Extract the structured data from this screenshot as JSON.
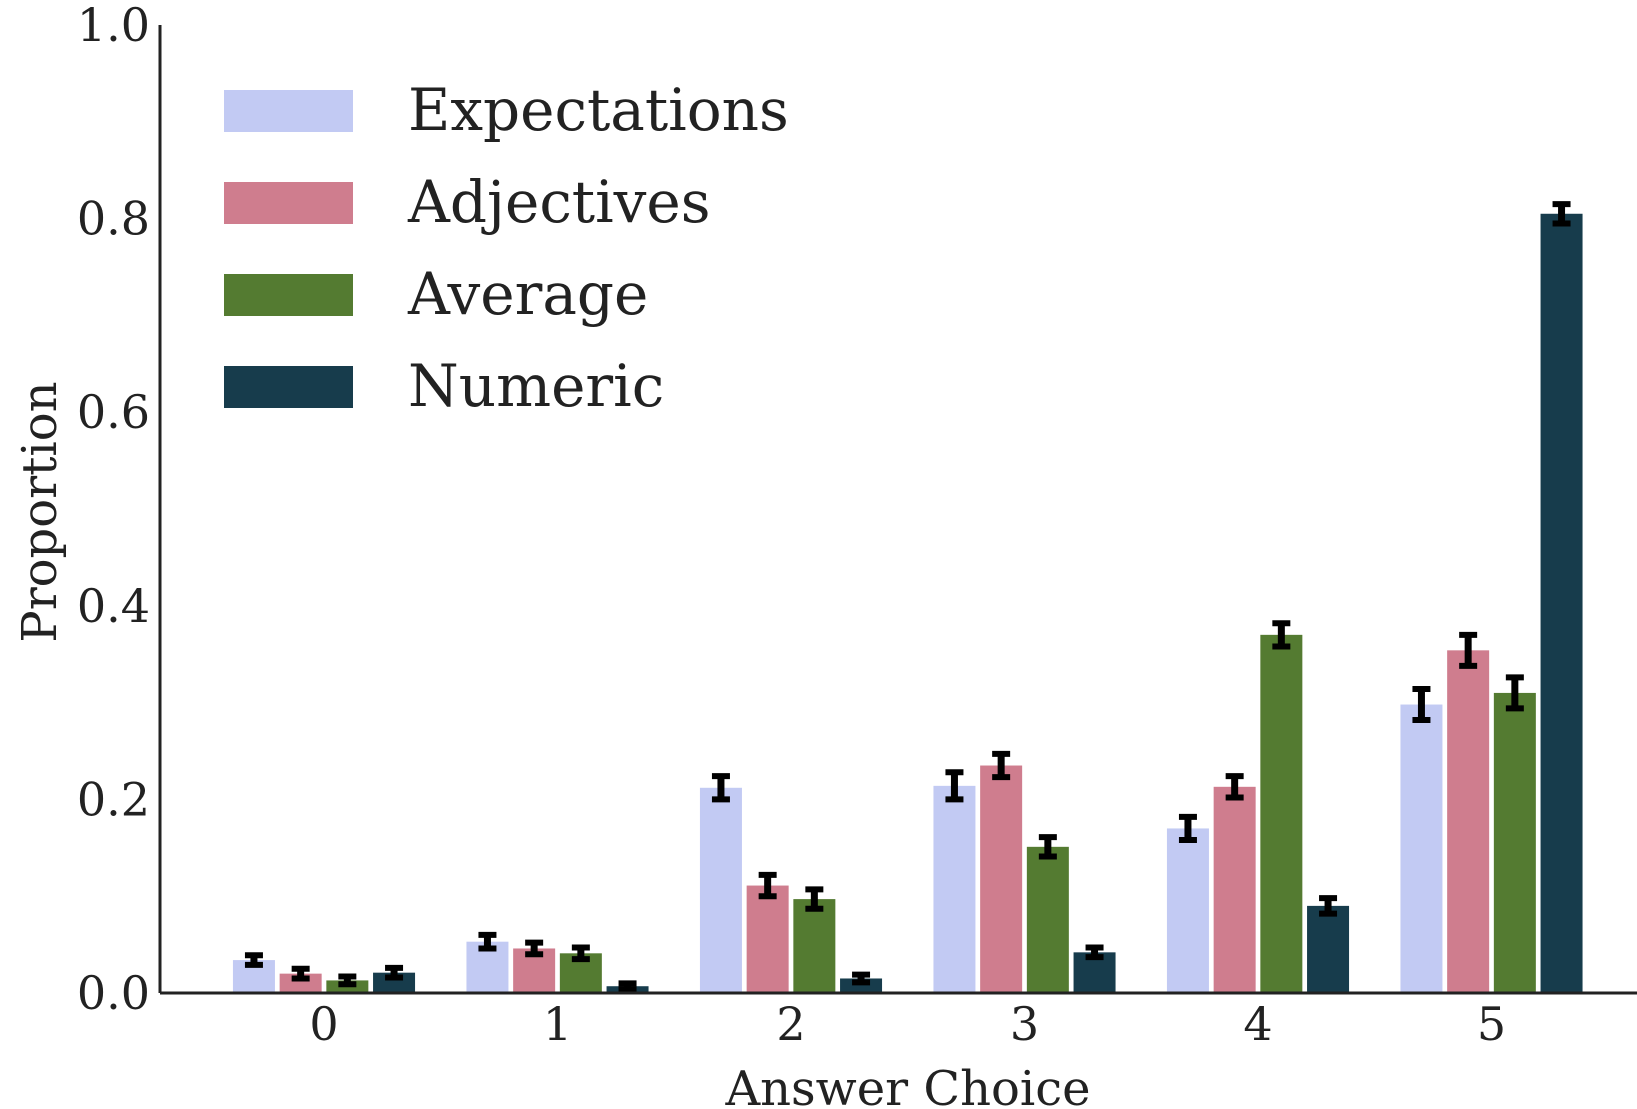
{
  "chart_data": {
    "type": "bar",
    "title": "",
    "xlabel": "Answer Choice",
    "ylabel": "Proportion",
    "categories": [
      "0",
      "1",
      "2",
      "3",
      "4",
      "5"
    ],
    "ylim": [
      0,
      1.0
    ],
    "yticks": [
      "0.0",
      "0.2",
      "0.4",
      "0.6",
      "0.8",
      "1.0"
    ],
    "grid": false,
    "legend_position": "top-left",
    "series": [
      {
        "name": "Expectations",
        "color": "#c2caf3",
        "values": [
          0.034,
          0.053,
          0.212,
          0.214,
          0.17,
          0.298
        ],
        "errors": [
          0.005,
          0.007,
          0.012,
          0.014,
          0.012,
          0.016
        ]
      },
      {
        "name": "Adjectives",
        "color": "#cf7d8e",
        "values": [
          0.02,
          0.046,
          0.111,
          0.235,
          0.213,
          0.354
        ],
        "errors": [
          0.005,
          0.006,
          0.011,
          0.012,
          0.011,
          0.016
        ]
      },
      {
        "name": "Average",
        "color": "#547b31",
        "values": [
          0.013,
          0.041,
          0.097,
          0.151,
          0.37,
          0.31
        ],
        "errors": [
          0.004,
          0.006,
          0.01,
          0.01,
          0.012,
          0.016
        ]
      },
      {
        "name": "Numeric",
        "color": "#173c4c",
        "values": [
          0.021,
          0.007,
          0.015,
          0.042,
          0.09,
          0.805
        ],
        "errors": [
          0.005,
          0.003,
          0.004,
          0.005,
          0.008,
          0.01
        ]
      }
    ]
  }
}
